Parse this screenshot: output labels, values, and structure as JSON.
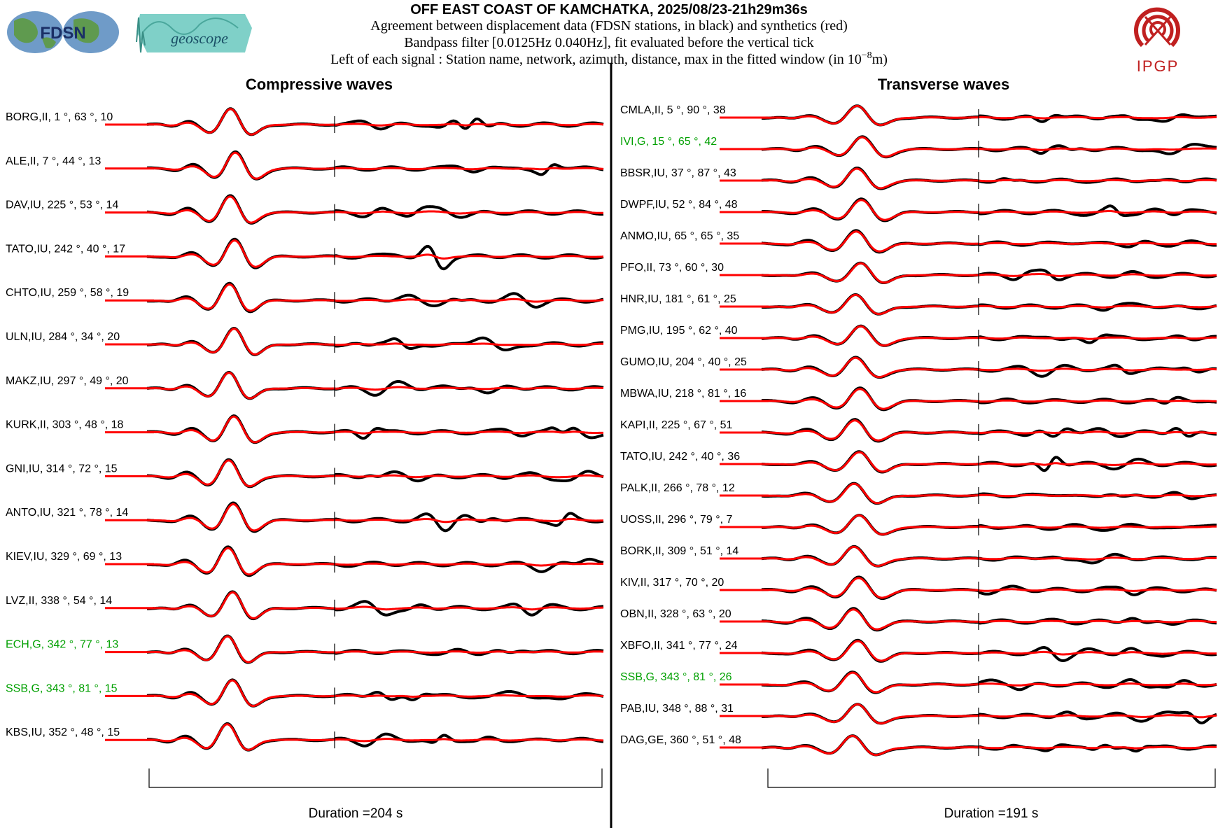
{
  "header": {
    "title": "OFF EAST COAST OF KAMCHATKA, 2025/08/23-21h29m36s",
    "line1": "Agreement between displacement data (FDSN stations, in black) and synthetics (red)",
    "line2": "Bandpass filter [0.0125Hz 0.040Hz], fit evaluated before the vertical tick",
    "line3_prefix": "Left of each signal : Station name, network, azimuth, distance, max in the fitted window (in 10",
    "line3_exp": "−8",
    "line3_suffix": "m)"
  },
  "logos": {
    "fdsn": "FDSN",
    "geoscope": "geoscope",
    "ipgp": "IPGP"
  },
  "colors": {
    "data": "#000000",
    "synthetic": "#ff0000",
    "highlight_label": "#00a000",
    "normal_label": "#000000"
  },
  "chart_data": [
    {
      "type": "line",
      "title": "Compressive waves",
      "duration_label": "Duration =204 s",
      "series": [
        {
          "name": "data",
          "color": "#000000"
        },
        {
          "name": "synthetics",
          "color": "#ff0000"
        }
      ],
      "stations": [
        {
          "label": "BORG,II, 1 °, 63 °, 10",
          "highlight": false
        },
        {
          "label": "ALE,II, 7 °, 44 °, 13",
          "highlight": false
        },
        {
          "label": "DAV,IU, 225 °, 53 °, 14",
          "highlight": false
        },
        {
          "label": "TATO,IU, 242 °, 40 °, 17",
          "highlight": false
        },
        {
          "label": "CHTO,IU, 259 °, 58 °, 19",
          "highlight": false
        },
        {
          "label": "ULN,IU, 284 °, 34 °, 20",
          "highlight": false
        },
        {
          "label": "MAKZ,IU, 297 °, 49 °, 20",
          "highlight": false
        },
        {
          "label": "KURK,II, 303 °, 48 °, 18",
          "highlight": false
        },
        {
          "label": "GNI,IU, 314 °, 72 °, 15",
          "highlight": false
        },
        {
          "label": "ANTO,IU, 321 °, 78 °, 14",
          "highlight": false
        },
        {
          "label": "KIEV,IU, 329 °, 69 °, 13",
          "highlight": false
        },
        {
          "label": "LVZ,II, 338 °, 54 °, 14",
          "highlight": false
        },
        {
          "label": "ECH,G, 342 °, 77 °, 13",
          "highlight": true
        },
        {
          "label": "SSB,G, 343 °, 81 °, 15",
          "highlight": true
        },
        {
          "label": "KBS,IU, 352 °, 48 °, 15",
          "highlight": false
        }
      ]
    },
    {
      "type": "line",
      "title": "Transverse waves",
      "duration_label": "Duration =191 s",
      "series": [
        {
          "name": "data",
          "color": "#000000"
        },
        {
          "name": "synthetics",
          "color": "#ff0000"
        }
      ],
      "stations": [
        {
          "label": "CMLA,II, 5 °, 90 °, 38",
          "highlight": false
        },
        {
          "label": "IVI,G, 15 °, 65 °, 42",
          "highlight": true
        },
        {
          "label": "BBSR,IU, 37 °, 87 °, 43",
          "highlight": false
        },
        {
          "label": "DWPF,IU, 52 °, 84 °, 48",
          "highlight": false
        },
        {
          "label": "ANMO,IU, 65 °, 65 °, 35",
          "highlight": false
        },
        {
          "label": "PFO,II, 73 °, 60 °, 30",
          "highlight": false
        },
        {
          "label": "HNR,IU, 181 °, 61 °, 25",
          "highlight": false
        },
        {
          "label": "PMG,IU, 195 °, 62 °, 40",
          "highlight": false
        },
        {
          "label": "GUMO,IU, 204 °, 40 °, 25",
          "highlight": false
        },
        {
          "label": "MBWA,IU, 218 °, 81 °, 16",
          "highlight": false
        },
        {
          "label": "KAPI,II, 225 °, 67 °, 51",
          "highlight": false
        },
        {
          "label": "TATO,IU, 242 °, 40 °, 36",
          "highlight": false
        },
        {
          "label": "PALK,II, 266 °, 78 °, 12",
          "highlight": false
        },
        {
          "label": "UOSS,II, 296 °, 79 °, 7",
          "highlight": false
        },
        {
          "label": "BORK,II, 309 °, 51 °, 14",
          "highlight": false
        },
        {
          "label": "KIV,II, 317 °, 70 °, 20",
          "highlight": false
        },
        {
          "label": "OBN,II, 328 °, 63 °, 20",
          "highlight": false
        },
        {
          "label": "XBFO,II, 341 °, 77 °, 24",
          "highlight": false
        },
        {
          "label": "SSB,G, 343 °, 81 °, 26",
          "highlight": true
        },
        {
          "label": "PAB,IU, 348 °, 88 °, 31",
          "highlight": false
        },
        {
          "label": "DAG,GE, 360 °, 51 °, 48",
          "highlight": false
        }
      ]
    }
  ]
}
